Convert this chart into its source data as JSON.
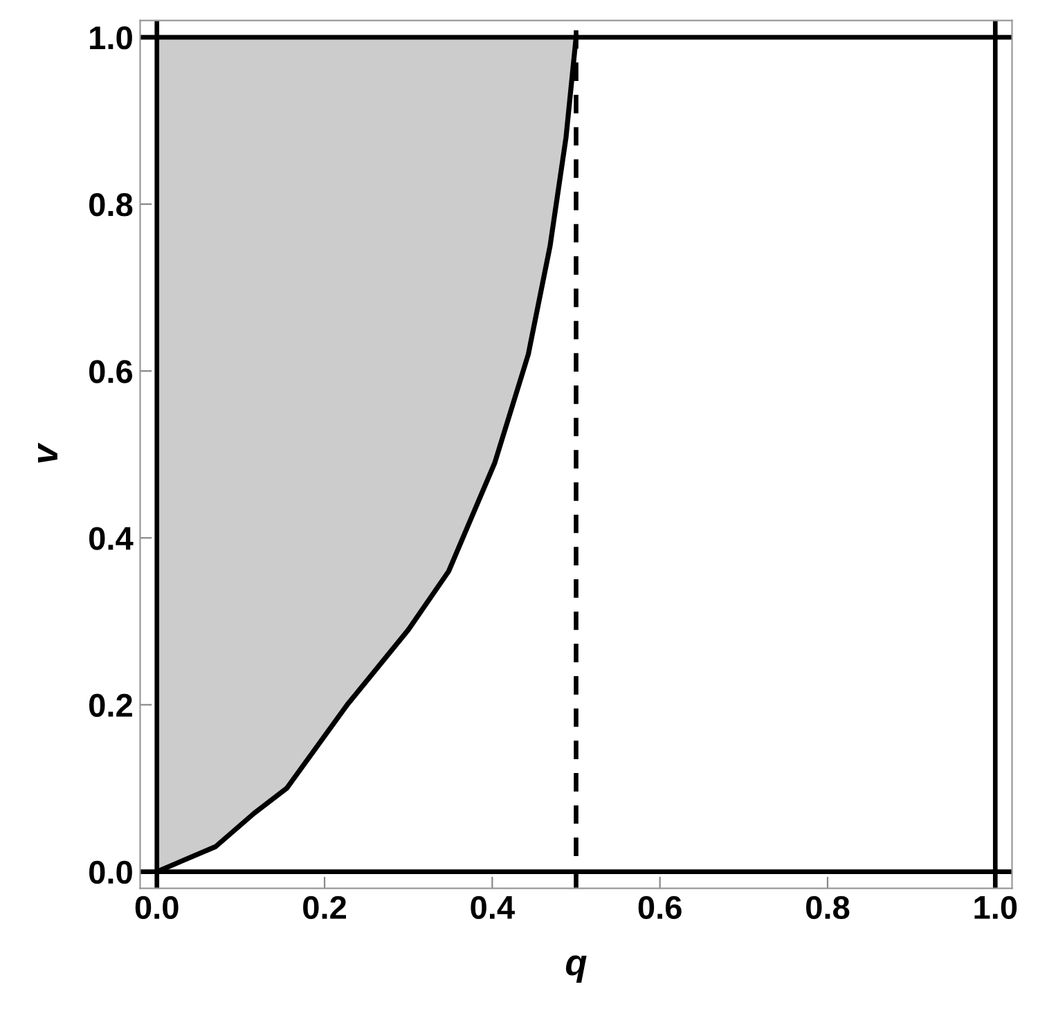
{
  "chart_data": {
    "type": "line",
    "xlabel": "q",
    "ylabel": "v",
    "xlim": [
      -0.02,
      1.02
    ],
    "ylim": [
      -0.02,
      1.02
    ],
    "xticks": [
      {
        "value": 0,
        "label": "0.0"
      },
      {
        "value": 0.2,
        "label": "0.2"
      },
      {
        "value": 0.4,
        "label": "0.4"
      },
      {
        "value": 0.6,
        "label": "0.6"
      },
      {
        "value": 0.8,
        "label": "0.8"
      },
      {
        "value": 1,
        "label": "1.0"
      }
    ],
    "yticks": [
      {
        "value": 0,
        "label": "0.0"
      },
      {
        "value": 0.2,
        "label": "0.2"
      },
      {
        "value": 0.4,
        "label": "0.4"
      },
      {
        "value": 0.6,
        "label": "0.6"
      },
      {
        "value": 0.8,
        "label": "0.8"
      },
      {
        "value": 1,
        "label": "1.0"
      }
    ],
    "grid": false,
    "legend": false,
    "marker": "none",
    "line_style": "solid",
    "series": [
      {
        "color": "#000000",
        "x": [
          0,
          0.07,
          0.116,
          0.155,
          0.227,
          0.3,
          0.348,
          0.403,
          0.443,
          0.469,
          0.488,
          0.5
        ],
        "values": [
          0,
          0.03,
          0.07,
          0.1,
          0.2,
          0.29,
          0.36,
          0.49,
          0.62,
          0.75,
          0.88,
          1
        ],
        "lower": [
          0,
          0.03,
          0.07,
          0.1,
          0.2,
          0.29,
          0.36,
          0.49,
          0.62,
          0.75,
          0.88,
          1
        ],
        "upper": [
          1,
          1,
          1,
          1,
          1,
          1,
          1,
          1,
          1,
          1,
          1,
          1
        ]
      }
    ],
    "ref_lines": [
      {
        "axis": "x",
        "value": 0,
        "color": "#000000",
        "line_style": "solid"
      },
      {
        "axis": "x",
        "value": 1,
        "color": "#000000",
        "line_style": "solid"
      },
      {
        "axis": "y",
        "value": 0,
        "color": "#000000",
        "line_style": "solid"
      },
      {
        "axis": "y",
        "value": 1,
        "color": "#000000",
        "line_style": "solid"
      },
      {
        "axis": "x",
        "value": 0.5,
        "color": "#000000",
        "line_style": "dashed"
      }
    ]
  }
}
